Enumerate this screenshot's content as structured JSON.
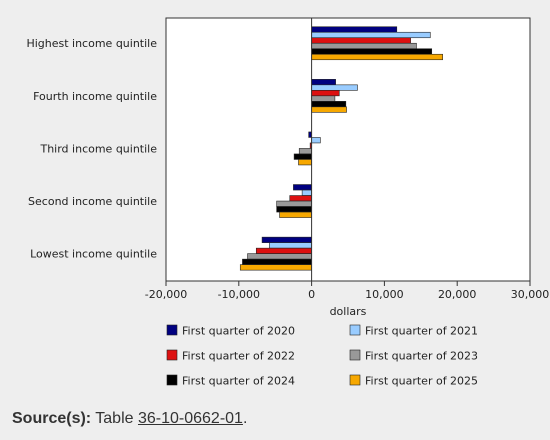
{
  "chart_data": {
    "type": "bar",
    "orientation": "horizontal",
    "categories": [
      "Highest income quintile",
      "Fourth income quintile",
      "Third income quintile",
      "Second income quintile",
      "Lowest income quintile"
    ],
    "series": [
      {
        "name": "First quarter of 2020",
        "color": "#000080",
        "values": [
          11700,
          3300,
          -400,
          -2500,
          -6800
        ]
      },
      {
        "name": "First quarter of 2021",
        "color": "#99ccff",
        "values": [
          16300,
          6300,
          1200,
          -1300,
          -5800
        ]
      },
      {
        "name": "First quarter of 2022",
        "color": "#dd1111",
        "values": [
          13600,
          3800,
          -200,
          -3000,
          -7600
        ]
      },
      {
        "name": "First quarter of 2023",
        "color": "#999999",
        "values": [
          14400,
          3200,
          -1700,
          -4800,
          -8800
        ]
      },
      {
        "name": "First quarter of 2024",
        "color": "#000000",
        "values": [
          16500,
          4700,
          -2400,
          -4800,
          -9500
        ]
      },
      {
        "name": "First quarter of 2025",
        "color": "#f7a800",
        "values": [
          18000,
          4800,
          -1800,
          -4400,
          -9800
        ]
      }
    ],
    "xlabel": "dollars",
    "xlim": [
      -20000,
      30000
    ],
    "xticks": [
      "-20,000",
      "-10,000",
      "0",
      "10,000",
      "20,000",
      "30,000"
    ],
    "xtick_values": [
      -20000,
      -10000,
      0,
      10000,
      20000,
      30000
    ],
    "legend_position": "bottom",
    "grid": false
  },
  "source": {
    "label": "Source(s):",
    "prefix": "Table ",
    "link_text": "36-10-0662-01",
    "suffix": "."
  }
}
